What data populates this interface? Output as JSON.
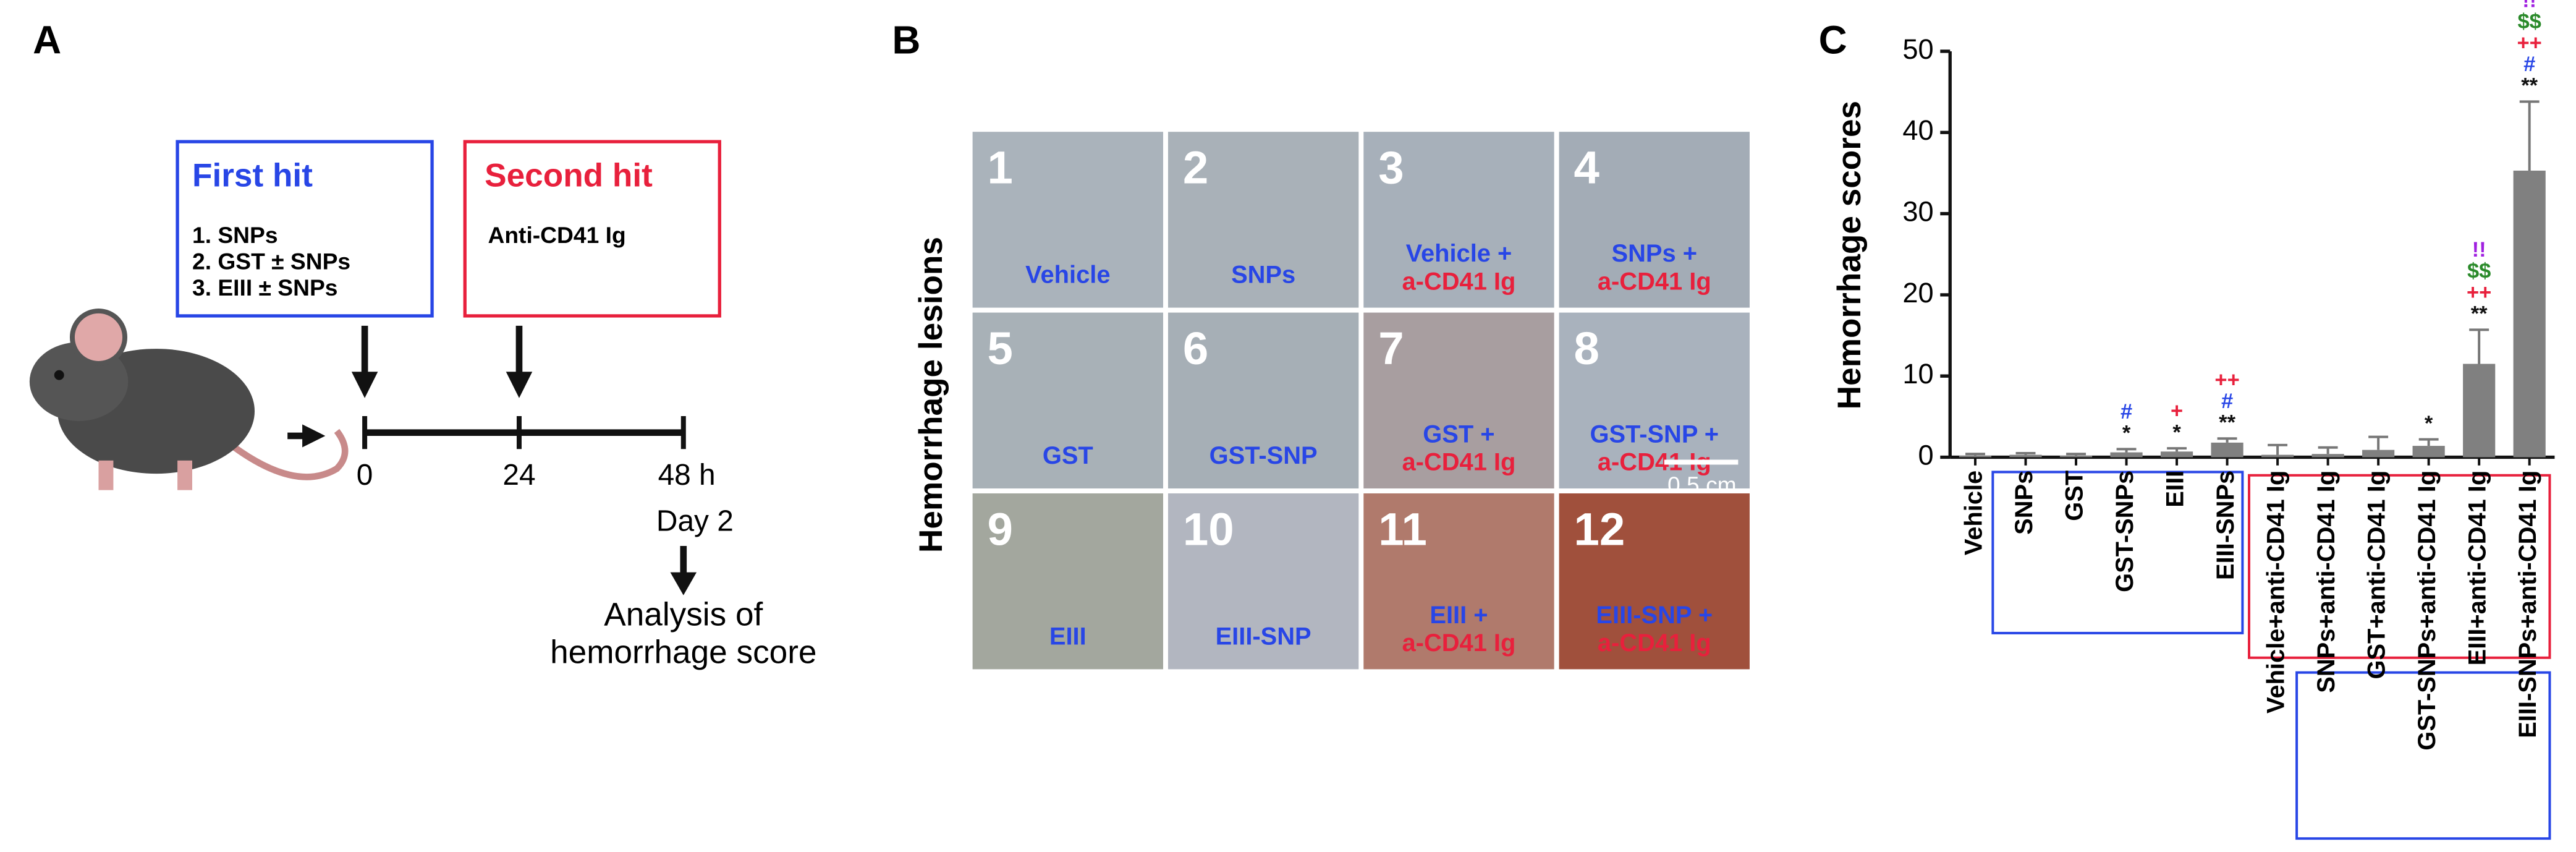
{
  "panel_a": {
    "letter": "A",
    "first_hit": {
      "title": "First hit",
      "items": [
        "1. SNPs",
        "2. GST  ±  SNPs",
        "3. EIII  ±  SNPs"
      ]
    },
    "second_hit": {
      "title": "Second hit",
      "items": [
        "Anti-CD41 Ig"
      ]
    },
    "timeline": [
      "0",
      "24",
      "48 h"
    ],
    "day": "Day 2",
    "analysis": [
      "Analysis of",
      "hemorrhage score"
    ]
  },
  "panel_b": {
    "letter": "B",
    "side_label": "Hemorrhage lesions",
    "scale_bar": "0.5 cm",
    "tiles": [
      {
        "number": "1",
        "label": "Vehicle"
      },
      {
        "number": "2",
        "label": "SNPs"
      },
      {
        "number": "3",
        "label": "Vehicle +",
        "label2": "a-CD41 Ig"
      },
      {
        "number": "4",
        "label": "SNPs +",
        "label2": "a-CD41 Ig"
      },
      {
        "number": "5",
        "label": "GST"
      },
      {
        "number": "6",
        "label": "GST-SNP"
      },
      {
        "number": "7",
        "label": "GST +",
        "label2": "a-CD41 Ig"
      },
      {
        "number": "8",
        "label": "GST-SNP +",
        "label2": "a-CD41 Ig"
      },
      {
        "number": "9",
        "label": "EIII"
      },
      {
        "number": "10",
        "label": "EIII-SNP"
      },
      {
        "number": "11",
        "label": "EIII +",
        "label2": "a-CD41 Ig"
      },
      {
        "number": "12",
        "label": "EIII-SNP +",
        "label2": "a-CD41 Ig"
      }
    ]
  },
  "chart_data": {
    "type": "bar",
    "letter": "C",
    "y_label": "Hemorrhage scores",
    "categories": [
      "Vehicle",
      "SNPs",
      "GST",
      "GST-SNPs",
      "EIII",
      "EIII-SNPs",
      "Vehicle+anti-CD41 Ig",
      "SNPs+anti-CD41 Ig",
      "GST+anti-CD41 Ig",
      "GST-SNPs+anti-CD41 Ig",
      "EIII+anti-CD41 Ig",
      "EIII-SNPs+anti-CD41 Ig"
    ],
    "values": [
      0.2,
      0.3,
      0.2,
      0.6,
      0.7,
      1.8,
      0.3,
      0.4,
      0.9,
      1.4,
      11.5,
      35.3
    ],
    "errors": [
      0.2,
      0.2,
      0.2,
      0.4,
      0.4,
      0.5,
      1.2,
      0.8,
      1.6,
      0.8,
      4.2,
      8.5
    ],
    "color": "#808080",
    "ylim": [
      0,
      50
    ],
    "yticks": [
      0,
      10,
      20,
      30,
      40,
      50
    ],
    "annotations": [
      [],
      [],
      [],
      [
        {
          "text": "*",
          "color": "#111111"
        },
        {
          "text": "#",
          "color": "#2846e6"
        }
      ],
      [
        {
          "text": "*",
          "color": "#111111"
        },
        {
          "text": "+",
          "color": "#e8203c"
        }
      ],
      [
        {
          "text": "**",
          "color": "#111111"
        },
        {
          "text": "#",
          "color": "#2846e6"
        },
        {
          "text": "++",
          "color": "#e8203c"
        }
      ],
      [],
      [],
      [],
      [
        {
          "text": "*",
          "color": "#111111"
        }
      ],
      [
        {
          "text": "**",
          "color": "#111111"
        },
        {
          "text": "++",
          "color": "#e8203c"
        },
        {
          "text": "$$",
          "color": "#2a8a2a"
        },
        {
          "text": "!!",
          "color": "#a020e0"
        }
      ],
      [
        {
          "text": "**",
          "color": "#111111"
        },
        {
          "text": "#",
          "color": "#2846e6"
        },
        {
          "text": "++",
          "color": "#e8203c"
        },
        {
          "text": "$$",
          "color": "#2a8a2a"
        },
        {
          "text": "!!",
          "color": "#a020e0"
        }
      ]
    ]
  }
}
